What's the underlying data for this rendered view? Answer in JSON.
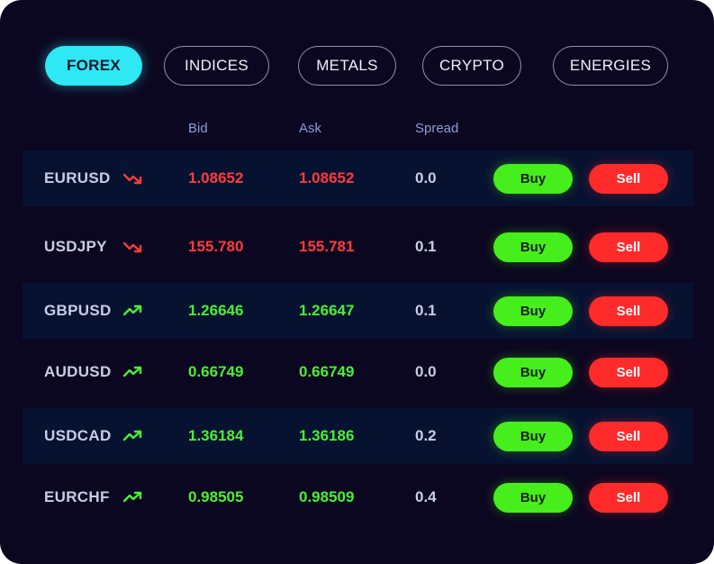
{
  "tabs": [
    {
      "label": "FOREX",
      "active": true
    },
    {
      "label": "INDICES",
      "active": false
    },
    {
      "label": "METALS",
      "active": false
    },
    {
      "label": "CRYPTO",
      "active": false
    },
    {
      "label": "ENERGIES",
      "active": false
    }
  ],
  "columns": {
    "bid": "Bid",
    "ask": "Ask",
    "spread": "Spread"
  },
  "colors": {
    "panel_background": "#0c0720",
    "shaded_row": "#071231",
    "active_tab": "#2ee8f4",
    "price_down": "#ff3b3b",
    "price_up": "#4af033",
    "buy_button": "#46ee1b",
    "sell_button": "#ff2a2a"
  },
  "rows": [
    {
      "symbol": "EURUSD",
      "trend": "down",
      "trend_icon": "trend-down-icon",
      "bid": "1.08652",
      "ask": "1.08652",
      "spread": "0.0",
      "buy_label": "Buy",
      "sell_label": "Sell"
    },
    {
      "symbol": "USDJPY",
      "trend": "down",
      "trend_icon": "trend-down-icon",
      "bid": "155.780",
      "ask": "155.781",
      "spread": "0.1",
      "buy_label": "Buy",
      "sell_label": "Sell"
    },
    {
      "symbol": "GBPUSD",
      "trend": "up",
      "trend_icon": "trend-up-icon",
      "bid": "1.26646",
      "ask": "1.26647",
      "spread": "0.1",
      "buy_label": "Buy",
      "sell_label": "Sell"
    },
    {
      "symbol": "AUDUSD",
      "trend": "up",
      "trend_icon": "trend-up-icon",
      "bid": "0.66749",
      "ask": "0.66749",
      "spread": "0.0",
      "buy_label": "Buy",
      "sell_label": "Sell"
    },
    {
      "symbol": "USDCAD",
      "trend": "up",
      "trend_icon": "trend-up-icon",
      "bid": "1.36184",
      "ask": "1.36186",
      "spread": "0.2",
      "buy_label": "Buy",
      "sell_label": "Sell"
    },
    {
      "symbol": "EURCHF",
      "trend": "up",
      "trend_icon": "trend-up-icon",
      "bid": "0.98505",
      "ask": "0.98509",
      "spread": "0.4",
      "buy_label": "Buy",
      "sell_label": "Sell"
    }
  ]
}
